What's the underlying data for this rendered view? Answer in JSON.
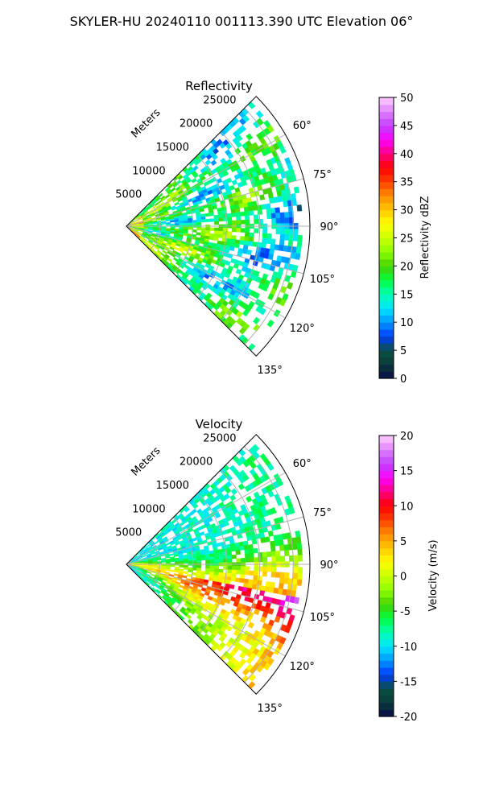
{
  "figure_title": "SKYLER-HU  20240110  001113.390 UTC Elevation 06°",
  "chart_data": [
    {
      "type": "heatmap",
      "subtype": "polar-sector-radar-ppi",
      "title": "Reflectivity",
      "radial_axis_label": "Meters",
      "radial_ticks": [
        "5000",
        "10000",
        "15000",
        "20000",
        "25000"
      ],
      "radial_max": 27500,
      "angle_range_deg": [
        45,
        135
      ],
      "angle_ticks": [
        "60°",
        "75°",
        "90°",
        "105°",
        "120°",
        "135°"
      ],
      "colorbar": {
        "label": "Reflectivity dBZ",
        "range": [
          0,
          50
        ],
        "ticks": [
          "0",
          "5",
          "10",
          "15",
          "20",
          "25",
          "30",
          "35",
          "40",
          "45",
          "50"
        ]
      },
      "grid": true
    },
    {
      "type": "heatmap",
      "subtype": "polar-sector-radar-ppi",
      "title": "Velocity",
      "radial_axis_label": "Meters",
      "radial_ticks": [
        "5000",
        "10000",
        "15000",
        "20000",
        "25000"
      ],
      "radial_max": 27500,
      "angle_range_deg": [
        45,
        135
      ],
      "angle_ticks": [
        "60°",
        "75°",
        "90°",
        "105°",
        "120°",
        "135°"
      ],
      "colorbar": {
        "label": "Velocity (m/s)",
        "range": [
          -20,
          20
        ],
        "ticks": [
          "-20",
          "-15",
          "-10",
          "-5",
          "0",
          "5",
          "10",
          "15",
          "20"
        ]
      },
      "grid": true
    }
  ],
  "colormap": [
    "#0a0a4a",
    "#0b3a3a",
    "#0a5040",
    "#003cff",
    "#0096ff",
    "#00e6ff",
    "#00ffb0",
    "#00ff40",
    "#46d200",
    "#8cff00",
    "#c8ff00",
    "#ffff00",
    "#ffc800",
    "#ff8c00",
    "#ff4000",
    "#ff0000",
    "#ff0080",
    "#ff00ff",
    "#c040ff",
    "#e080ff",
    "#ffd0ff"
  ]
}
